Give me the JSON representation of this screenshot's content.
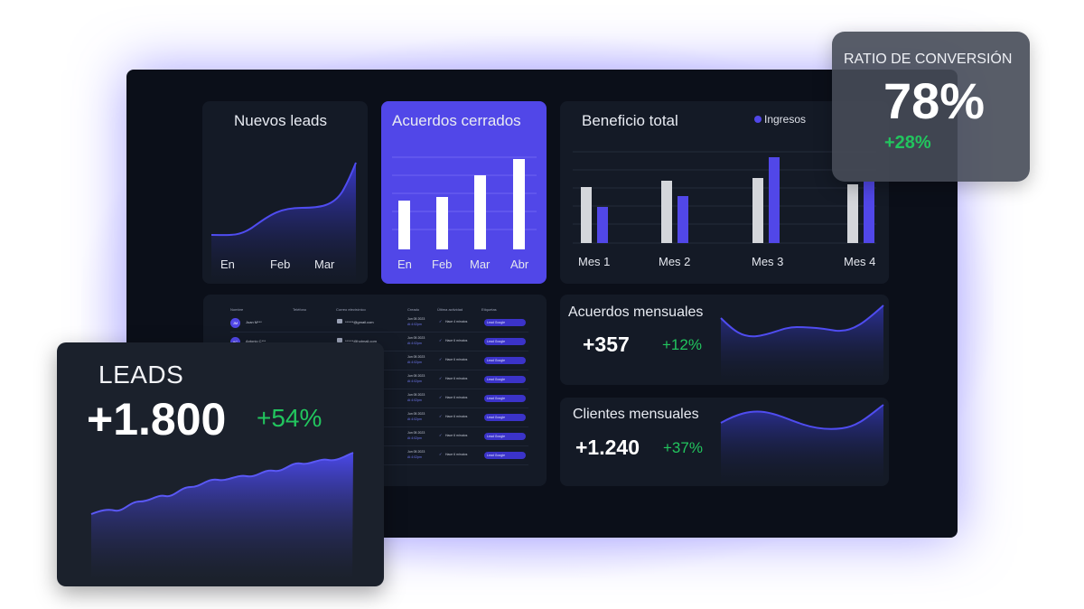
{
  "cards": {
    "nuevos_leads": {
      "title": "Nuevos leads",
      "x_labels": [
        "En",
        "Feb",
        "Mar"
      ]
    },
    "acuerdos_cerrados": {
      "title": "Acuerdos cerrados",
      "x_labels": [
        "En",
        "Feb",
        "Mar",
        "Abr"
      ]
    },
    "beneficio_total": {
      "title": "Beneficio total",
      "legend": "Ingresos",
      "x_labels": [
        "Mes 1",
        "Mes 2",
        "Mes 3",
        "Mes 4"
      ]
    },
    "acuerdos_mensuales": {
      "title": "Acuerdos mensuales",
      "value": "+357",
      "change": "+12%"
    },
    "clientes_mensuales": {
      "title": "Clientes mensuales",
      "value": "+1.240",
      "change": "+37%"
    }
  },
  "table": {
    "headers": [
      "Nombre",
      "Teléfono",
      "Correo electrónico",
      "Creado",
      "Última actividad",
      "Etiquetas"
    ],
    "rows": [
      {
        "initials": "JM",
        "name": "Juan M***",
        "email": "******@gmail.com",
        "date": "Jun 05 2023",
        "time": "At 4:02pm",
        "activity": "Hace 4 minutos",
        "tag": "Lead Google"
      },
      {
        "initials": "AC",
        "name": "Antonio C***",
        "email": "******@hotmail.com",
        "date": "Jun 05 2023",
        "time": "At 4:02pm",
        "activity": "Hace 6 minutos",
        "tag": "Lead Google"
      },
      {
        "initials": "",
        "name": "",
        "email": "",
        "date": "Jun 05 2023",
        "time": "At 4:02pm",
        "activity": "Hace 6 minutos",
        "tag": "Lead Google"
      },
      {
        "initials": "",
        "name": "",
        "email": "",
        "date": "Jun 05 2023",
        "time": "At 4:02pm",
        "activity": "Hace 6 minutos",
        "tag": "Lead Google"
      },
      {
        "initials": "",
        "name": "",
        "email": "",
        "date": "Jun 05 2023",
        "time": "At 4:02pm",
        "activity": "Hace 6 minutos",
        "tag": "Lead Google"
      },
      {
        "initials": "",
        "name": "",
        "email": "",
        "date": "Jun 05 2023",
        "time": "At 4:02pm",
        "activity": "Hace 6 minutos",
        "tag": "Lead Google"
      },
      {
        "initials": "",
        "name": "",
        "email": "",
        "date": "Jun 05 2023",
        "time": "At 4:02pm",
        "activity": "Hace 6 minutos",
        "tag": "Lead Google"
      },
      {
        "initials": "",
        "name": "",
        "email": "",
        "date": "Jun 05 2023",
        "time": "At 4:02pm",
        "activity": "Hace 6 minutos",
        "tag": "Lead Google"
      }
    ]
  },
  "overlays": {
    "leads": {
      "label": "LEADS",
      "value": "+1.800",
      "change": "+54%"
    },
    "ratio": {
      "label": "RATIO DE CONVERSIÓN",
      "value": "78%",
      "change": "+28%"
    }
  },
  "colors": {
    "accent": "#5147e8",
    "positive": "#22c55e",
    "card": "#141a26",
    "board": "#0b0f19",
    "bar_gray": "#d4d6db"
  },
  "chart_data": [
    {
      "type": "bar",
      "title": "Acuerdos cerrados",
      "categories": [
        "En",
        "Feb",
        "Mar",
        "Abr"
      ],
      "values": [
        54,
        58,
        82,
        100
      ]
    },
    {
      "type": "bar",
      "title": "Beneficio total",
      "categories": [
        "Mes 1",
        "Mes 2",
        "Mes 3",
        "Mes 4"
      ],
      "series": [
        {
          "values": [
            62,
            69,
            72,
            65
          ]
        },
        {
          "name": "Ingresos",
          "values": [
            40,
            52,
            95,
            68
          ]
        }
      ],
      "legend_position": "top-right"
    }
  ]
}
